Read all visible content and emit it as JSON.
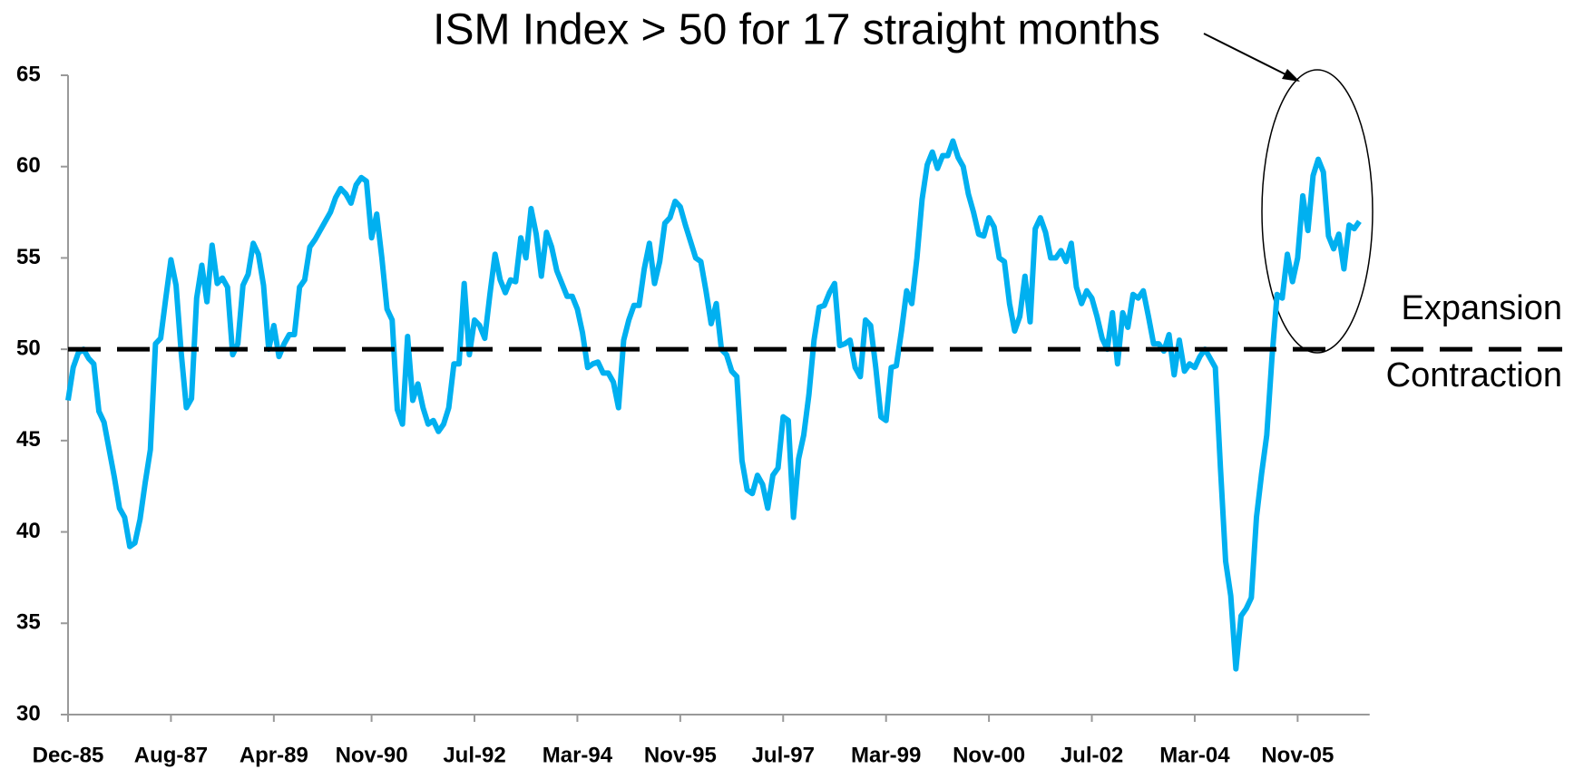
{
  "chart_data": {
    "type": "line",
    "title": "ISM Index > 50 for 17 straight months",
    "upper_label": "Expansion",
    "lower_label": "Contraction",
    "threshold": 50,
    "color": "#00b0f0",
    "ylim": [
      30,
      65
    ],
    "yticks": [
      30,
      35,
      40,
      45,
      50,
      55,
      60,
      65
    ],
    "categories": [
      "Dec-85",
      null,
      null,
      null,
      null,
      null,
      null,
      null,
      null,
      null,
      null,
      null,
      null,
      null,
      null,
      null,
      null,
      null,
      null,
      null,
      "Aug-87",
      null,
      null,
      null,
      null,
      null,
      null,
      null,
      null,
      null,
      null,
      null,
      null,
      null,
      null,
      null,
      null,
      null,
      null,
      null,
      "Apr-89",
      null,
      null,
      null,
      null,
      null,
      null,
      null,
      null,
      null,
      null,
      null,
      null,
      null,
      null,
      null,
      null,
      null,
      null,
      "Nov-90",
      null,
      null,
      null,
      null,
      null,
      null,
      null,
      null,
      null,
      null,
      null,
      null,
      null,
      null,
      null,
      null,
      null,
      null,
      null,
      "Jul-92",
      null,
      null,
      null,
      null,
      null,
      null,
      null,
      null,
      null,
      null,
      null,
      null,
      null,
      null,
      null,
      null,
      null,
      null,
      null,
      "Mar-94",
      null,
      null,
      null,
      null,
      null,
      null,
      null,
      null,
      null,
      null,
      null,
      null,
      null,
      null,
      null,
      null,
      null,
      null,
      null,
      "Nov-95",
      null,
      null,
      null,
      null,
      null,
      null,
      null,
      null,
      null,
      null,
      null,
      null,
      null,
      null,
      null,
      null,
      null,
      null,
      null,
      "Jul-97",
      null,
      null,
      null,
      null,
      null,
      null,
      null,
      null,
      null,
      null,
      null,
      null,
      null,
      null,
      null,
      null,
      null,
      null,
      null,
      "Mar-99",
      null,
      null,
      null,
      null,
      null,
      null,
      null,
      null,
      null,
      null,
      null,
      null,
      null,
      null,
      null,
      null,
      null,
      null,
      null,
      "Nov-00",
      null,
      null,
      null,
      null,
      null,
      null,
      null,
      null,
      null,
      null,
      null,
      null,
      null,
      null,
      null,
      null,
      null,
      null,
      null,
      "Jul-02",
      null,
      null,
      null,
      null,
      null,
      null,
      null,
      null,
      null,
      null,
      null,
      null,
      null,
      null,
      null,
      null,
      null,
      null,
      null,
      "Mar-04",
      null,
      null,
      null,
      null,
      null,
      null,
      null,
      null,
      null,
      null,
      null,
      null,
      null,
      null,
      null,
      null,
      null,
      null,
      null,
      "Nov-05",
      null,
      null,
      null,
      null,
      null,
      null,
      null,
      null,
      null,
      null,
      null,
      null
    ],
    "values": [
      47.2,
      49,
      49.8,
      50,
      49.5,
      49.2,
      46.6,
      46,
      44.5,
      43,
      41.3,
      40.8,
      39.2,
      39.4,
      40.7,
      42.7,
      44.5,
      50.3,
      50.6,
      52.8,
      54.9,
      53.5,
      49.8,
      46.8,
      47.3,
      52.8,
      54.6,
      52.6,
      55.7,
      53.6,
      53.9,
      53.4,
      49.7,
      50.3,
      53.5,
      54.1,
      55.8,
      55.2,
      53.5,
      50.0,
      51.3,
      49.6,
      50.3,
      50.8,
      50.8,
      53.4,
      53.8,
      55.6,
      56.0,
      56.5,
      57.0,
      57.5,
      58.3,
      58.8,
      58.5,
      58.0,
      59.0,
      59.4,
      59.2,
      56.1,
      57.4,
      55.0,
      52.2,
      51.6,
      46.7,
      45.9,
      50.7,
      47.2,
      48.1,
      46.8,
      45.9,
      46.1,
      45.5,
      45.9,
      46.8,
      49.2,
      49.2,
      53.6,
      49.7,
      51.6,
      51.3,
      50.6,
      53.0,
      55.2,
      53.8,
      53.1,
      53.8,
      53.7,
      56.1,
      55.0,
      57.7,
      56.3,
      54.0,
      56.4,
      55.6,
      54.3,
      53.6,
      52.9,
      52.9,
      52.2,
      50.9,
      49.0,
      49.2,
      49.3,
      48.7,
      48.7,
      48.2,
      46.8,
      50.5,
      51.6,
      52.4,
      52.4,
      54.4,
      55.8,
      53.6,
      54.8,
      56.9,
      57.2,
      58.1,
      57.8,
      56.8,
      55.9,
      55.0,
      54.8,
      53.2,
      51.4,
      52.5,
      50.0,
      49.7,
      48.8,
      48.5,
      43.9,
      42.3,
      42.1,
      43.1,
      42.6,
      41.3,
      43.1,
      43.5,
      46.3,
      46.1,
      40.8,
      44.0,
      45.3,
      47.5,
      50.5,
      52.3,
      52.4,
      53.1,
      53.6,
      50.2,
      50.3,
      50.5,
      49.0,
      48.5,
      51.6,
      51.3,
      49.0,
      46.3,
      46.1,
      49.0,
      49.1,
      51.0,
      53.2,
      52.5,
      55.0,
      58.2,
      60.1,
      60.8,
      59.9,
      60.6,
      60.6,
      61.4,
      60.5,
      60.0,
      58.5,
      57.5,
      56.3,
      56.2,
      57.2,
      56.7,
      55.0,
      54.8,
      52.5,
      51.0,
      51.8,
      54.0,
      51.5,
      56.6,
      57.2,
      56.4,
      55.0,
      55.0,
      55.4,
      54.8,
      55.8,
      53.4,
      52.5,
      53.2,
      52.8,
      51.8,
      50.6,
      50.0,
      52.0,
      49.2,
      52.0,
      51.2,
      53.0,
      52.8,
      53.2,
      51.8,
      50.3,
      50.3,
      49.9,
      50.8,
      48.6,
      50.5,
      48.8,
      49.2,
      49.0,
      49.6,
      50.0,
      49.5,
      49.0,
      43.5,
      38.4,
      36.5,
      32.5,
      35.4,
      35.8,
      36.4,
      40.8,
      43.2,
      45.3,
      49.5,
      53.0,
      52.8,
      55.2,
      53.7,
      55.0,
      58.4,
      56.5,
      59.5,
      60.4,
      59.7,
      56.2,
      55.5,
      56.3,
      54.4,
      56.8,
      56.6,
      57.0
    ]
  }
}
